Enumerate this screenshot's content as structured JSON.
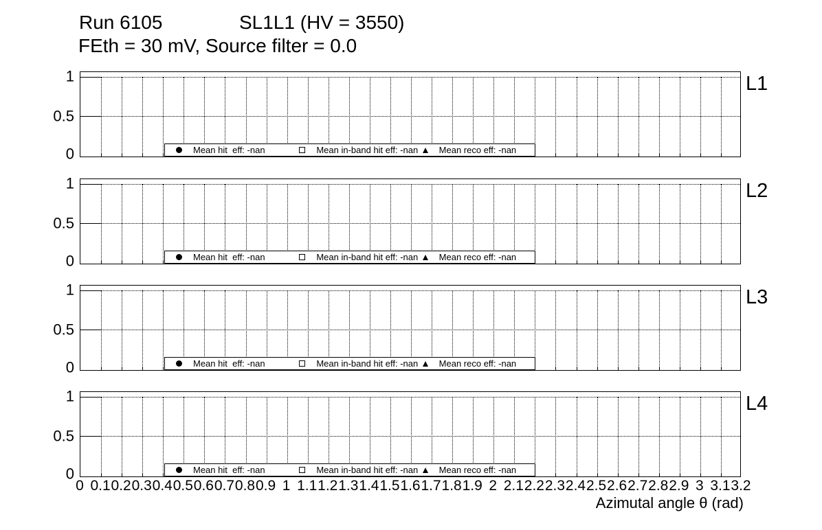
{
  "title": {
    "run": "Run 6105",
    "chamber": "SL1L1 (HV = 3550)",
    "line2": "FEth = 30 mV, Source filter = 0.0"
  },
  "colors": {
    "foreground": "#000000",
    "background": "#ffffff"
  },
  "y_axis": {
    "tick_labels": [
      "1",
      "0.5",
      "0"
    ],
    "range": [
      0,
      1.05
    ]
  },
  "x_axis": {
    "title": "Azimutal angle θ (rad)",
    "range": [
      0,
      3.2
    ],
    "tick_labels": [
      "0",
      "0.1",
      "0.2",
      "0.3",
      "0.4",
      "0.5",
      "0.6",
      "0.7",
      "0.8",
      "0.9",
      "1",
      "1.1",
      "1.2",
      "1.3",
      "1.4",
      "1.5",
      "1.6",
      "1.7",
      "1.8",
      "1.9",
      "2",
      "2.1",
      "2.2",
      "2.3",
      "2.4",
      "2.5",
      "2.6",
      "2.7",
      "2.8",
      "2.9",
      "3",
      "3.1",
      "3.2"
    ]
  },
  "panels": [
    {
      "label": "L1"
    },
    {
      "label": "L2"
    },
    {
      "label": "L3"
    },
    {
      "label": "L4"
    }
  ],
  "legend": {
    "entries": [
      {
        "marker": "filled-circle",
        "label": "Mean hit  eff: -nan"
      },
      {
        "marker": "open-square",
        "label": "Mean in-band hit eff: -nan"
      },
      {
        "marker": "filled-triangle",
        "label": "Mean reco eff: -nan"
      }
    ]
  },
  "chart_data": [
    {
      "type": "scatter",
      "title": "L1",
      "xlabel": "Azimutal angle θ (rad)",
      "ylabel": "",
      "xlim": [
        0,
        3.2
      ],
      "ylim": [
        0,
        1.05
      ],
      "xtick_step": 0.1,
      "yticks": [
        0,
        0.5,
        1
      ],
      "grid": true,
      "legend_position": "bottom-center",
      "series": [
        {
          "name": "Mean hit  eff",
          "mean": "-nan",
          "marker": "filled-circle",
          "points": []
        },
        {
          "name": "Mean in-band hit eff",
          "mean": "-nan",
          "marker": "open-square",
          "points": []
        },
        {
          "name": "Mean reco eff",
          "mean": "-nan",
          "marker": "filled-triangle",
          "points": []
        }
      ]
    },
    {
      "type": "scatter",
      "title": "L2",
      "xlabel": "Azimutal angle θ (rad)",
      "ylabel": "",
      "xlim": [
        0,
        3.2
      ],
      "ylim": [
        0,
        1.05
      ],
      "xtick_step": 0.1,
      "yticks": [
        0,
        0.5,
        1
      ],
      "grid": true,
      "legend_position": "bottom-center",
      "series": [
        {
          "name": "Mean hit  eff",
          "mean": "-nan",
          "marker": "filled-circle",
          "points": []
        },
        {
          "name": "Mean in-band hit eff",
          "mean": "-nan",
          "marker": "open-square",
          "points": []
        },
        {
          "name": "Mean reco eff",
          "mean": "-nan",
          "marker": "filled-triangle",
          "points": []
        }
      ]
    },
    {
      "type": "scatter",
      "title": "L3",
      "xlabel": "Azimutal angle θ (rad)",
      "ylabel": "",
      "xlim": [
        0,
        3.2
      ],
      "ylim": [
        0,
        1.05
      ],
      "xtick_step": 0.1,
      "yticks": [
        0,
        0.5,
        1
      ],
      "grid": true,
      "legend_position": "bottom-center",
      "series": [
        {
          "name": "Mean hit  eff",
          "mean": "-nan",
          "marker": "filled-circle",
          "points": []
        },
        {
          "name": "Mean in-band hit eff",
          "mean": "-nan",
          "marker": "open-square",
          "points": []
        },
        {
          "name": "Mean reco eff",
          "mean": "-nan",
          "marker": "filled-triangle",
          "points": []
        }
      ]
    },
    {
      "type": "scatter",
      "title": "L4",
      "xlabel": "Azimutal angle θ (rad)",
      "ylabel": "",
      "xlim": [
        0,
        3.2
      ],
      "ylim": [
        0,
        1.05
      ],
      "xtick_step": 0.1,
      "yticks": [
        0,
        0.5,
        1
      ],
      "grid": true,
      "legend_position": "bottom-center",
      "series": [
        {
          "name": "Mean hit  eff",
          "mean": "-nan",
          "marker": "filled-circle",
          "points": []
        },
        {
          "name": "Mean in-band hit eff",
          "mean": "-nan",
          "marker": "open-square",
          "points": []
        },
        {
          "name": "Mean reco eff",
          "mean": "-nan",
          "marker": "filled-triangle",
          "points": []
        }
      ]
    }
  ]
}
